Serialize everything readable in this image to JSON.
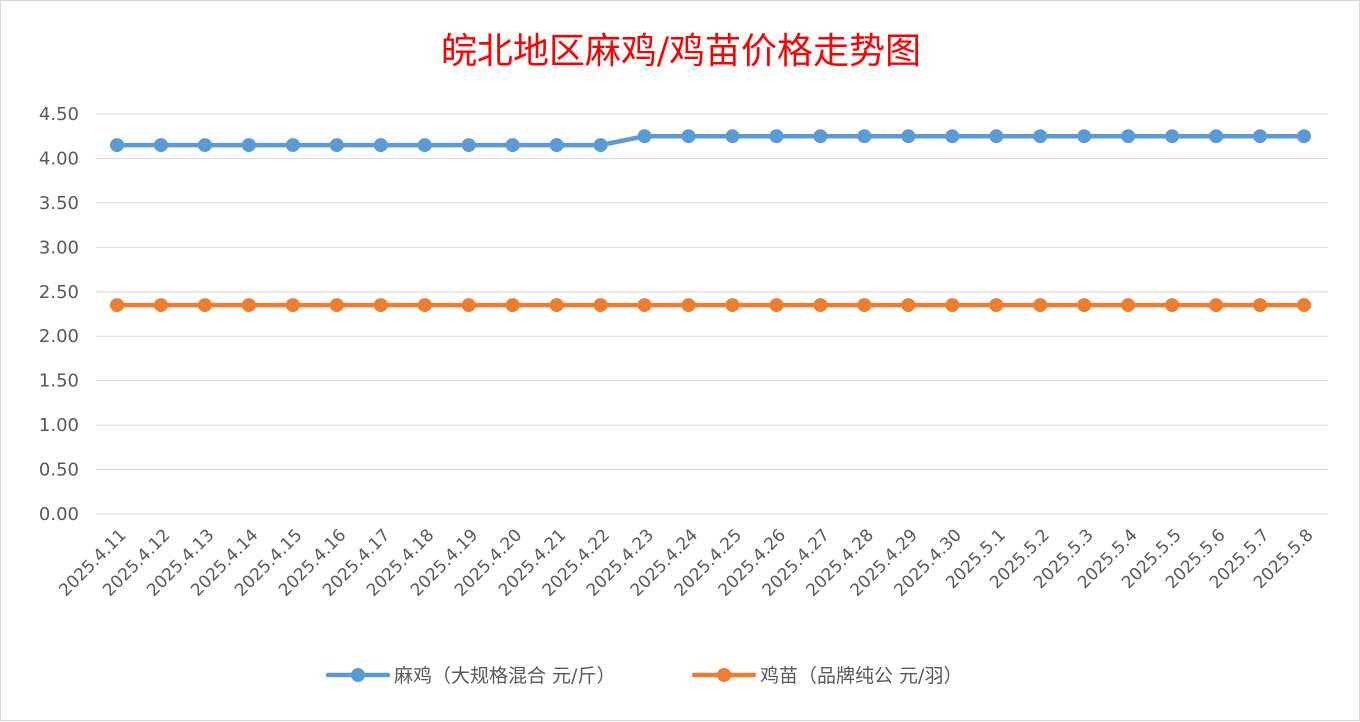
{
  "chart_data": {
    "type": "line",
    "title": "皖北地区麻鸡/鸡苗价格走势图",
    "xlabel": "",
    "ylabel": "",
    "ylim": [
      0,
      4.5
    ],
    "yticks": [
      "0.00",
      "0.50",
      "1.00",
      "1.50",
      "2.00",
      "2.50",
      "3.00",
      "3.50",
      "4.00",
      "4.50"
    ],
    "grid": true,
    "legend_position": "bottom",
    "categories": [
      "2025.4.11",
      "2025.4.12",
      "2025.4.13",
      "2025.4.14",
      "2025.4.15",
      "2025.4.16",
      "2025.4.17",
      "2025.4.18",
      "2025.4.19",
      "2025.4.20",
      "2025.4.21",
      "2025.4.22",
      "2025.4.23",
      "2025.4.24",
      "2025.4.25",
      "2025.4.26",
      "2025.4.27",
      "2025.4.28",
      "2025.4.29",
      "2025.4.30",
      "2025.5.1",
      "2025.5.2",
      "2025.5.3",
      "2025.5.4",
      "2025.5.5",
      "2025.5.6",
      "2025.5.7",
      "2025.5.8"
    ],
    "series": [
      {
        "name": "麻鸡（大规格混合 元/斤）",
        "color": "#5b9bd5",
        "values": [
          4.15,
          4.15,
          4.15,
          4.15,
          4.15,
          4.15,
          4.15,
          4.15,
          4.15,
          4.15,
          4.15,
          4.15,
          4.25,
          4.25,
          4.25,
          4.25,
          4.25,
          4.25,
          4.25,
          4.25,
          4.25,
          4.25,
          4.25,
          4.25,
          4.25,
          4.25,
          4.25,
          4.25
        ]
      },
      {
        "name": "鸡苗（品牌纯公 元/羽）",
        "color": "#ed7d31",
        "values": [
          2.35,
          2.35,
          2.35,
          2.35,
          2.35,
          2.35,
          2.35,
          2.35,
          2.35,
          2.35,
          2.35,
          2.35,
          2.35,
          2.35,
          2.35,
          2.35,
          2.35,
          2.35,
          2.35,
          2.35,
          2.35,
          2.35,
          2.35,
          2.35,
          2.35,
          2.35,
          2.35,
          2.35
        ]
      }
    ]
  }
}
